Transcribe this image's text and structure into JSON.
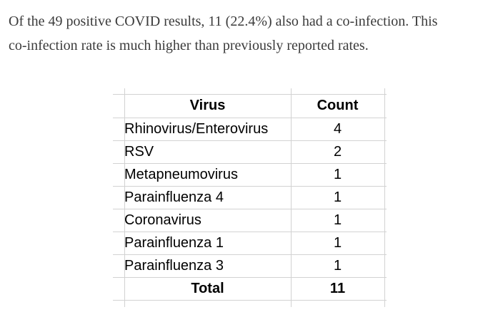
{
  "paragraph": {
    "line1": "Of the 49 positive COVID results, 11 (22.4%) also had a co-infection. This",
    "line2": "co-infection rate is much higher than previously reported rates."
  },
  "table": {
    "header": {
      "virus": "Virus",
      "count": "Count"
    },
    "rows": [
      {
        "virus": "Rhinovirus/Enterovirus",
        "count": "4"
      },
      {
        "virus": "RSV",
        "count": "2"
      },
      {
        "virus": "Metapneumovirus",
        "count": "1"
      },
      {
        "virus": "Parainfluenza 4",
        "count": "1"
      },
      {
        "virus": "Coronavirus",
        "count": "1"
      },
      {
        "virus": "Parainfluenza 1",
        "count": "1"
      },
      {
        "virus": "Parainfluenza 3",
        "count": "1"
      }
    ],
    "total": {
      "label": "Total",
      "count": "11"
    }
  },
  "colors": {
    "paragraph_text": "#3b3b3b",
    "table_text": "#000000",
    "gridline": "#d2d2d2",
    "background": "#ffffff"
  }
}
